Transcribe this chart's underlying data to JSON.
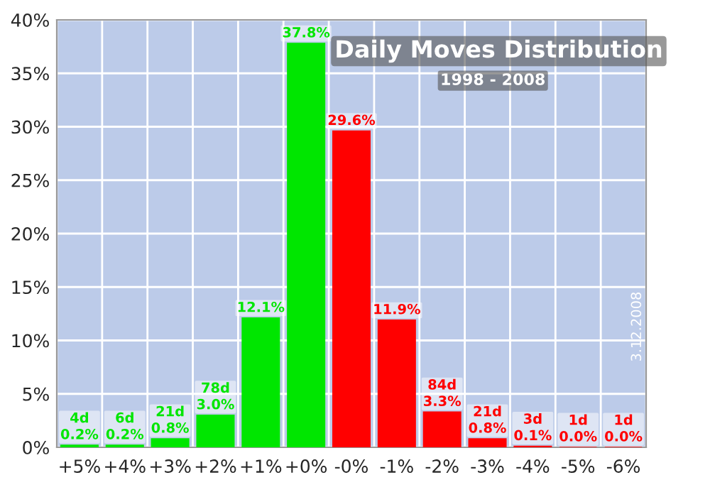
{
  "chart_data": {
    "type": "bar",
    "title": "Daily Moves Distribution",
    "subtitle": "1998 - 2008",
    "categories": [
      "+5%",
      "+4%",
      "+3%",
      "+2%",
      "+1%",
      "+0%",
      "-0%",
      "-1%",
      "-2%",
      "-3%",
      "-4%",
      "-5%",
      "-6%"
    ],
    "values": [
      0.2,
      0.2,
      0.8,
      3.0,
      12.1,
      37.8,
      29.6,
      11.9,
      3.3,
      0.8,
      0.1,
      0.0,
      0.0
    ],
    "value_labels": [
      "4d\n0.2%",
      "6d\n0.2%",
      "21d\n0.8%",
      "78d\n3.0%",
      "12.1%",
      "37.8%",
      "29.6%",
      "11.9%",
      "84d\n3.3%",
      "21d\n0.8%",
      "3d\n0.1%",
      "1d\n0.0%",
      "1d\n0.0%"
    ],
    "colors": [
      "#00e600",
      "#00e600",
      "#00e600",
      "#00e600",
      "#00e600",
      "#00e600",
      "#ff0000",
      "#ff0000",
      "#ff0000",
      "#ff0000",
      "#ff0000",
      "#ff0000",
      "#ff0000"
    ],
    "ylim": [
      0,
      40
    ],
    "yticks": [
      {
        "value": 0,
        "label": "0%"
      },
      {
        "value": 5,
        "label": "5%"
      },
      {
        "value": 10,
        "label": "10%"
      },
      {
        "value": 15,
        "label": "15%"
      },
      {
        "value": 20,
        "label": "20%"
      },
      {
        "value": 25,
        "label": "25%"
      },
      {
        "value": 30,
        "label": "30%"
      },
      {
        "value": 35,
        "label": "35%"
      },
      {
        "value": 40,
        "label": "40%"
      }
    ],
    "grid": true,
    "annotations": [
      "3.12.2008"
    ]
  }
}
